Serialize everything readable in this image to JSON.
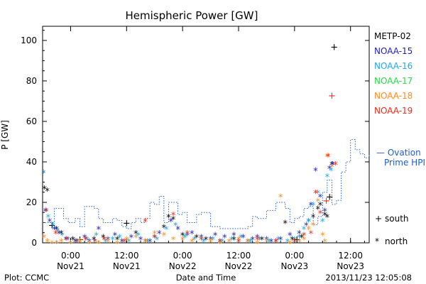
{
  "colors": {
    "background": "#ffffff",
    "axis": "#000000",
    "ovation": "#1e5fc8",
    "METP-02": "#000000",
    "NOAA-15": "#1f1fb4",
    "NOAA-16": "#1fa8e6",
    "NOAA-17": "#2bd64a",
    "NOAA-18": "#ff8c1a",
    "NOAA-19": "#e62d1a"
  },
  "chart_data": {
    "type": "scatter",
    "title": "Hemispheric Power [GW]",
    "ylabel": "P [GW]",
    "xlabel": "Date and Time",
    "ylim": [
      0,
      107
    ],
    "xlim": [
      0,
      70
    ],
    "x_units": "hours since 2013-11-20 18:00",
    "yticks": [
      0,
      20,
      40,
      60,
      80,
      100
    ],
    "xticks": [
      {
        "x": 6,
        "time": "0:00",
        "date": "Nov21"
      },
      {
        "x": 18,
        "time": "12:00",
        "date": "Nov21"
      },
      {
        "x": 30,
        "time": "0:00",
        "date": "Nov22"
      },
      {
        "x": 42,
        "time": "12:00",
        "date": "Nov22"
      },
      {
        "x": 54,
        "time": "0:00",
        "date": "Nov23"
      },
      {
        "x": 66,
        "time": "12:00",
        "date": "Nov23"
      }
    ],
    "legend": [
      "METP-02",
      "NOAA-15",
      "NOAA-16",
      "NOAA-17",
      "NOAA-18",
      "NOAA-19"
    ],
    "ovation_label": [
      "— Ovation",
      "Prime HPI"
    ],
    "symbol_key": [
      {
        "symbol": "+",
        "label": "south"
      },
      {
        "symbol": "*",
        "label": "north"
      }
    ],
    "ovation_hpi": {
      "x": [
        0,
        2.5,
        4.5,
        5.5,
        7,
        8,
        9,
        10,
        11,
        12,
        13,
        14,
        15,
        16,
        17,
        18,
        19,
        20,
        21,
        22,
        23,
        24,
        25,
        26,
        27,
        28,
        29,
        30,
        31,
        32,
        33,
        34,
        35,
        36,
        37,
        38,
        39,
        40,
        41,
        42,
        43,
        44,
        45,
        46,
        47,
        48,
        49,
        50,
        51,
        52,
        53,
        54,
        55,
        56,
        57,
        58,
        59,
        60,
        61,
        62,
        63,
        64,
        65,
        66,
        67,
        68,
        69,
        70
      ],
      "y": [
        10,
        17,
        12,
        10,
        12,
        8,
        18,
        18,
        17,
        12,
        10,
        10,
        12,
        11,
        8,
        7,
        10,
        12,
        10,
        12,
        20,
        19,
        23,
        10,
        20,
        20,
        14,
        15,
        10,
        10,
        14,
        15,
        15,
        8,
        8,
        7,
        7,
        7,
        7,
        7,
        7,
        8,
        13,
        12,
        12,
        16,
        16,
        20,
        20,
        17,
        10,
        12,
        13,
        17,
        18,
        9,
        13,
        25,
        31,
        19,
        21,
        35,
        40,
        51,
        46,
        44,
        42,
        44
      ]
    },
    "series": [
      {
        "name": "METP-02",
        "points": [
          [
            0.4,
            28
          ],
          [
            1.0,
            27
          ],
          [
            2.0,
            9
          ],
          [
            3.0,
            8
          ],
          [
            4.0,
            6
          ],
          [
            6.5,
            3
          ],
          [
            8.0,
            2
          ],
          [
            11.0,
            3
          ],
          [
            13.0,
            4
          ],
          [
            16.0,
            3
          ],
          [
            18.0,
            10
          ],
          [
            20.0,
            6
          ],
          [
            22.0,
            2
          ],
          [
            24.0,
            4
          ],
          [
            26.0,
            9
          ],
          [
            27.0,
            14
          ],
          [
            28.0,
            13
          ],
          [
            30.0,
            5
          ],
          [
            33.0,
            4
          ],
          [
            35.0,
            3
          ],
          [
            38.0,
            2
          ],
          [
            41.0,
            3
          ],
          [
            44.0,
            2
          ],
          [
            47.0,
            3
          ],
          [
            50.0,
            2
          ],
          [
            52.0,
            11
          ],
          [
            53.5,
            3
          ],
          [
            54.5,
            2
          ],
          [
            55.5,
            4
          ],
          [
            57.0,
            12
          ],
          [
            58.0,
            14
          ],
          [
            59.0,
            18
          ],
          [
            59.5,
            20
          ],
          [
            60.5,
            15
          ],
          [
            61.0,
            14
          ],
          [
            61.5,
            23
          ],
          [
            62.0,
            40
          ],
          [
            62.5,
            97
          ]
        ],
        "marker": [
          "*",
          "*",
          "+",
          "*",
          "*",
          "*",
          "+",
          "*",
          "*",
          "*",
          "+",
          "*",
          "*",
          "*",
          "*",
          "*",
          "*",
          "*",
          "*",
          "*",
          "*",
          "*",
          "*",
          "*",
          "*",
          "*",
          "*",
          "+",
          "*",
          "*",
          "*",
          "*",
          "*",
          "*",
          "*",
          "+",
          "*",
          "+"
        ]
      },
      {
        "name": "NOAA-15",
        "points": [
          [
            0.6,
            17
          ],
          [
            1.5,
            12
          ],
          [
            2.5,
            8
          ],
          [
            3.5,
            6
          ],
          [
            5.0,
            3
          ],
          [
            7.0,
            2
          ],
          [
            9.0,
            4
          ],
          [
            10.0,
            2
          ],
          [
            12.0,
            8
          ],
          [
            14.0,
            3
          ],
          [
            15.5,
            5
          ],
          [
            17.0,
            2
          ],
          [
            19.0,
            4
          ],
          [
            21.0,
            3
          ],
          [
            23.0,
            2
          ],
          [
            25.0,
            6
          ],
          [
            27.5,
            12
          ],
          [
            29.0,
            8
          ],
          [
            31.0,
            5
          ],
          [
            32.0,
            6
          ],
          [
            34.0,
            4
          ],
          [
            36.0,
            3
          ],
          [
            37.0,
            5
          ],
          [
            39.0,
            4
          ],
          [
            41.0,
            5
          ],
          [
            43.0,
            4
          ],
          [
            45.0,
            3
          ],
          [
            46.0,
            4
          ],
          [
            48.0,
            3
          ],
          [
            49.0,
            2
          ],
          [
            51.0,
            3
          ],
          [
            53.0,
            5
          ],
          [
            55.0,
            6
          ],
          [
            56.5,
            10
          ],
          [
            57.5,
            20
          ],
          [
            58.5,
            37
          ],
          [
            59.5,
            24
          ],
          [
            60.5,
            17
          ],
          [
            61.5,
            38
          ],
          [
            62.2,
            40
          ]
        ]
      },
      {
        "name": "NOAA-16",
        "points": [
          [
            0.2,
            36
          ],
          [
            1.2,
            14
          ],
          [
            2.2,
            10
          ],
          [
            3.2,
            7
          ],
          [
            4.2,
            5
          ],
          [
            5.5,
            3
          ],
          [
            7.5,
            2
          ],
          [
            9.5,
            3
          ],
          [
            11.5,
            5
          ],
          [
            13.5,
            2
          ],
          [
            15.0,
            3
          ],
          [
            16.5,
            4
          ],
          [
            18.5,
            2
          ],
          [
            20.5,
            5
          ],
          [
            22.5,
            2
          ],
          [
            24.5,
            3
          ],
          [
            26.5,
            8
          ],
          [
            28.5,
            10
          ],
          [
            30.5,
            4
          ],
          [
            32.5,
            3
          ],
          [
            34.5,
            2
          ],
          [
            36.5,
            3
          ],
          [
            38.5,
            2
          ],
          [
            40.5,
            3
          ],
          [
            42.5,
            4
          ],
          [
            44.5,
            2
          ],
          [
            46.5,
            3
          ],
          [
            48.5,
            2
          ],
          [
            50.5,
            3
          ],
          [
            52.5,
            2
          ],
          [
            54.0,
            3
          ],
          [
            55.0,
            4
          ],
          [
            56.0,
            8
          ],
          [
            57.0,
            12
          ],
          [
            58.0,
            20
          ],
          [
            59.0,
            26
          ],
          [
            60.0,
            12
          ],
          [
            61.0,
            34
          ],
          [
            61.8,
            37
          ]
        ]
      },
      {
        "name": "NOAA-17",
        "points": []
      },
      {
        "name": "NOAA-18",
        "points": [
          [
            0.3,
            4
          ],
          [
            1.0,
            2
          ],
          [
            2.0,
            1
          ],
          [
            3.0,
            1
          ],
          [
            4.0,
            2
          ],
          [
            6.0,
            1
          ],
          [
            8.0,
            2
          ],
          [
            10.0,
            1
          ],
          [
            12.0,
            1
          ],
          [
            14.0,
            2
          ],
          [
            16.0,
            1
          ],
          [
            18.0,
            3
          ],
          [
            20.0,
            4
          ],
          [
            22.0,
            2
          ],
          [
            24.0,
            6
          ],
          [
            26.0,
            5
          ],
          [
            28.0,
            3
          ],
          [
            30.0,
            3
          ],
          [
            32.0,
            2
          ],
          [
            34.0,
            3
          ],
          [
            36.0,
            2
          ],
          [
            38.0,
            1
          ],
          [
            40.0,
            2
          ],
          [
            42.0,
            3
          ],
          [
            44.0,
            2
          ],
          [
            46.0,
            1
          ],
          [
            48.0,
            2
          ],
          [
            51.0,
            24
          ],
          [
            53.0,
            1
          ],
          [
            55.0,
            2
          ],
          [
            56.0,
            3
          ],
          [
            57.0,
            8
          ],
          [
            58.0,
            10
          ],
          [
            59.0,
            22
          ],
          [
            60.0,
            5
          ],
          [
            60.5,
            2
          ],
          [
            61.0,
            44
          ],
          [
            62.0,
            39
          ]
        ]
      },
      {
        "name": "NOAA-19",
        "points": [
          [
            0.8,
            17
          ],
          [
            2.8,
            6
          ],
          [
            5.2,
            3
          ],
          [
            7.2,
            2
          ],
          [
            9.2,
            3
          ],
          [
            11.2,
            2
          ],
          [
            13.2,
            3
          ],
          [
            17.5,
            2
          ],
          [
            22.0,
            12
          ],
          [
            24.0,
            4
          ],
          [
            28.0,
            15
          ],
          [
            31.0,
            6
          ],
          [
            34.0,
            3
          ],
          [
            38.0,
            2
          ],
          [
            42.0,
            2
          ],
          [
            46.0,
            3
          ],
          [
            50.0,
            2
          ],
          [
            54.0,
            2
          ],
          [
            56.0,
            5
          ],
          [
            57.5,
            6
          ],
          [
            58.5,
            26
          ],
          [
            59.5,
            16
          ],
          [
            60.8,
            21
          ],
          [
            61.2,
            44
          ],
          [
            62.0,
            73
          ],
          [
            62.8,
            40
          ]
        ],
        "marker": [
          "*",
          "*",
          "*",
          "*",
          "*",
          "*",
          "*",
          "*",
          "*",
          "*",
          "*",
          "*",
          "*",
          "*",
          "*",
          "*",
          "*",
          "*",
          "*",
          "*",
          "*",
          "*",
          "+",
          "*",
          "+",
          "*"
        ]
      }
    ]
  },
  "footer": {
    "left": "Plot: CCMC",
    "center": "Date and Time",
    "right": "2013/11/23 12:05:08"
  }
}
